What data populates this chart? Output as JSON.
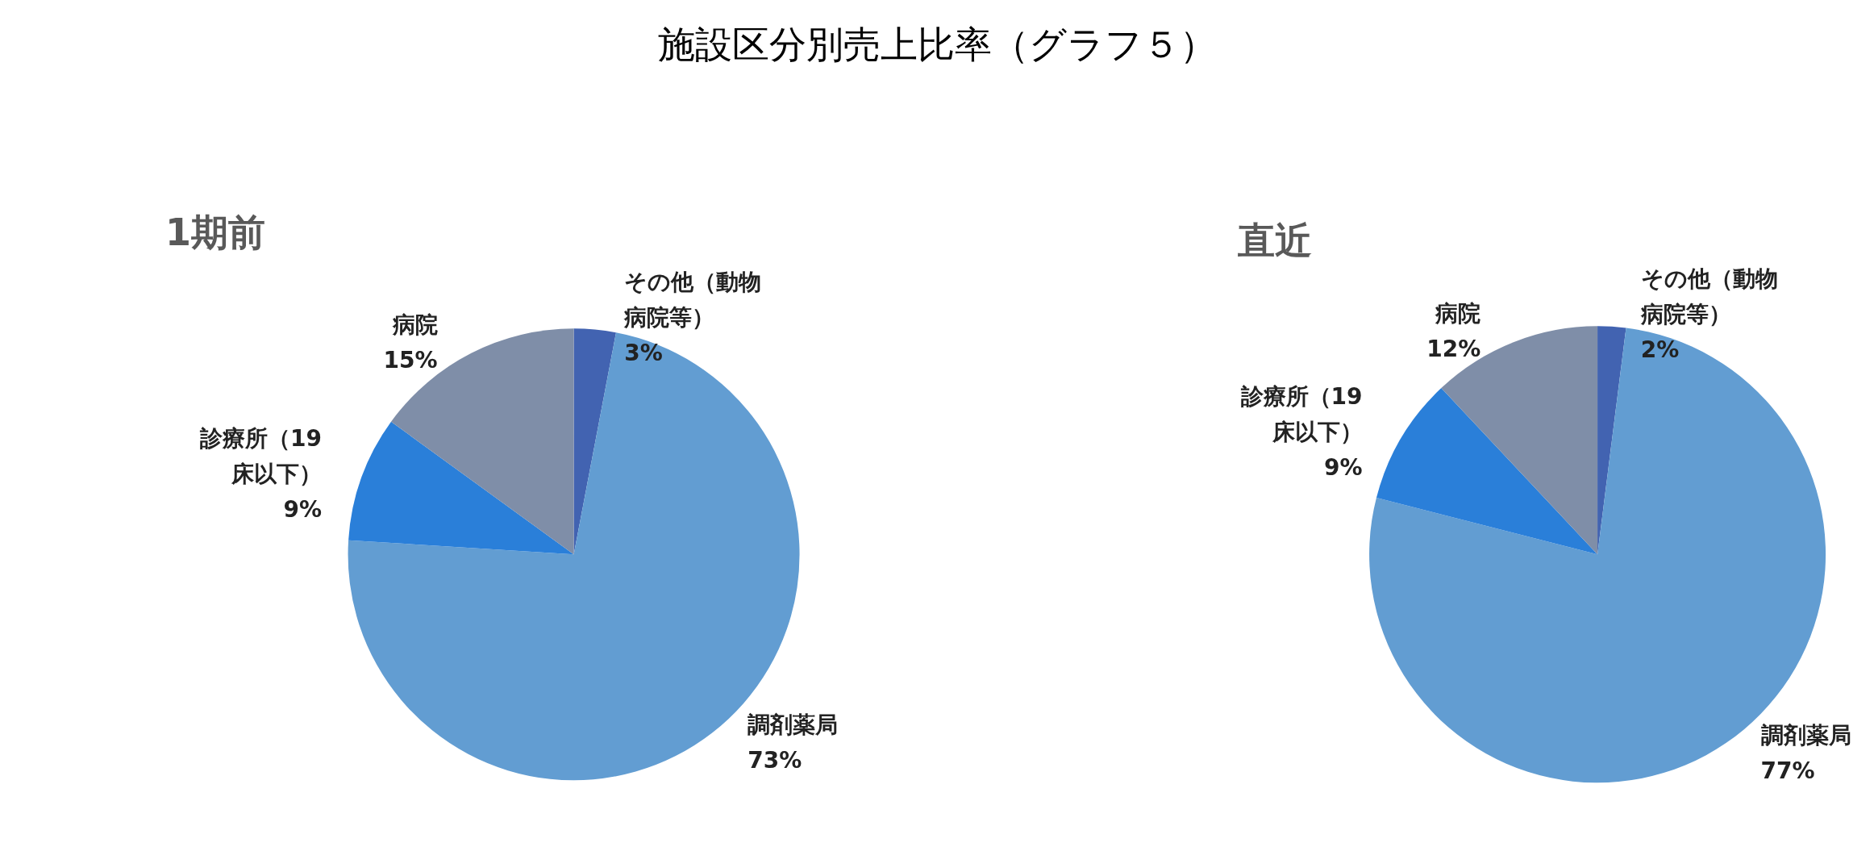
{
  "chart_data": [
    {
      "type": "pie",
      "title": "施設区分別売上比率（グラフ５）",
      "subtitle": "1期前",
      "categories": [
        "その他（動物病院等）",
        "調剤薬局",
        "診療所（19床以下）",
        "病院"
      ],
      "values": [
        3,
        73,
        9,
        15
      ],
      "value_labels": [
        "3%",
        "73%",
        "9%",
        "15%"
      ],
      "colors": [
        "#4263b1",
        "#629dd2",
        "#2a7fd9",
        "#7f8ea8"
      ]
    },
    {
      "type": "pie",
      "subtitle": "直近",
      "categories": [
        "その他（動物病院等）",
        "調剤薬局",
        "診療所（19床以下）",
        "病院"
      ],
      "values": [
        2,
        77,
        9,
        12
      ],
      "value_labels": [
        "2%",
        "77%",
        "9%",
        "12%"
      ],
      "colors": [
        "#4263b1",
        "#629dd2",
        "#2a7fd9",
        "#7f8ea8"
      ]
    }
  ]
}
